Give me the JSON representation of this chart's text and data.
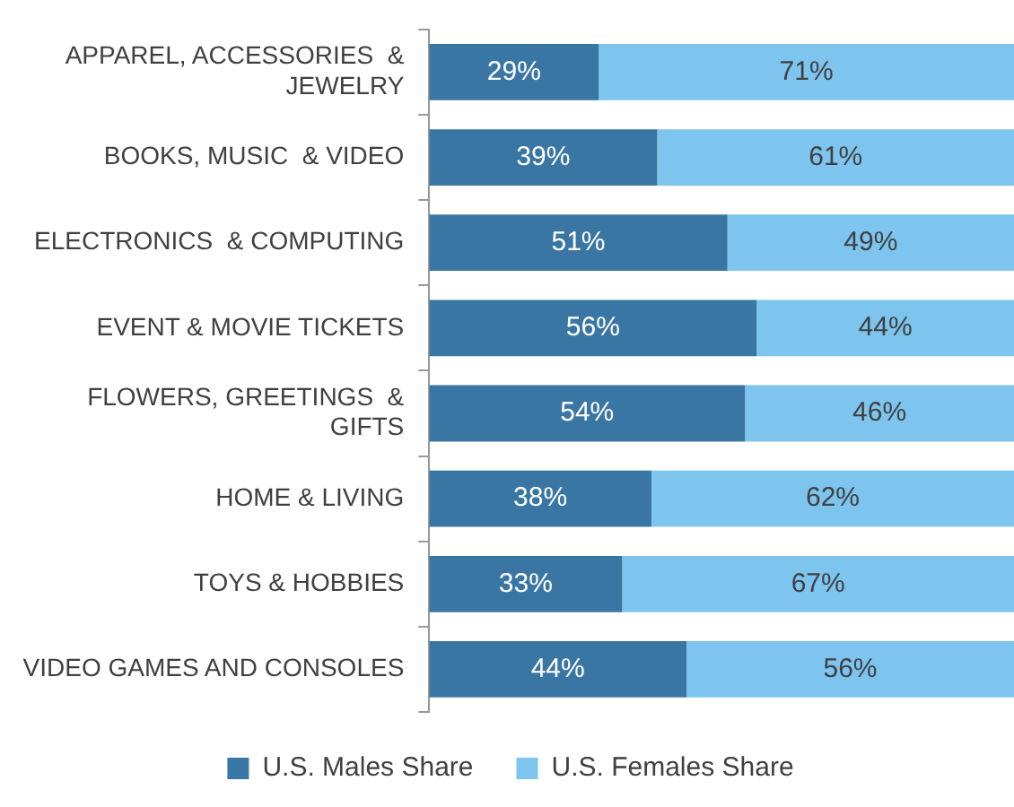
{
  "chart_data": {
    "type": "bar",
    "orientation": "horizontal",
    "stacked": true,
    "xlim": [
      0,
      100
    ],
    "tick_labels": false,
    "legend": "bottom",
    "categories": [
      "APPAREL, ACCESSORIES  & JEWELRY",
      "BOOKS, MUSIC  & VIDEO",
      "ELECTRONICS  & COMPUTING",
      "EVENT & MOVIE TICKETS",
      "FLOWERS, GREETINGS  & GIFTS",
      "HOME & LIVING",
      "TOYS & HOBBIES",
      "VIDEO GAMES AND CONSOLES"
    ],
    "series": [
      {
        "name": "U.S. Males Share",
        "color": "#3a76a4",
        "values": [
          29,
          39,
          51,
          56,
          54,
          38,
          33,
          44
        ],
        "value_labels": [
          "29%",
          "39%",
          "51%",
          "56%",
          "54%",
          "38%",
          "33%",
          "44%"
        ]
      },
      {
        "name": "U.S. Females Share",
        "color": "#7dc4ef",
        "values": [
          71,
          61,
          49,
          44,
          46,
          62,
          67,
          56
        ],
        "value_labels": [
          "71%",
          "61%",
          "49%",
          "44%",
          "46%",
          "62%",
          "67%",
          "56%"
        ]
      }
    ]
  }
}
